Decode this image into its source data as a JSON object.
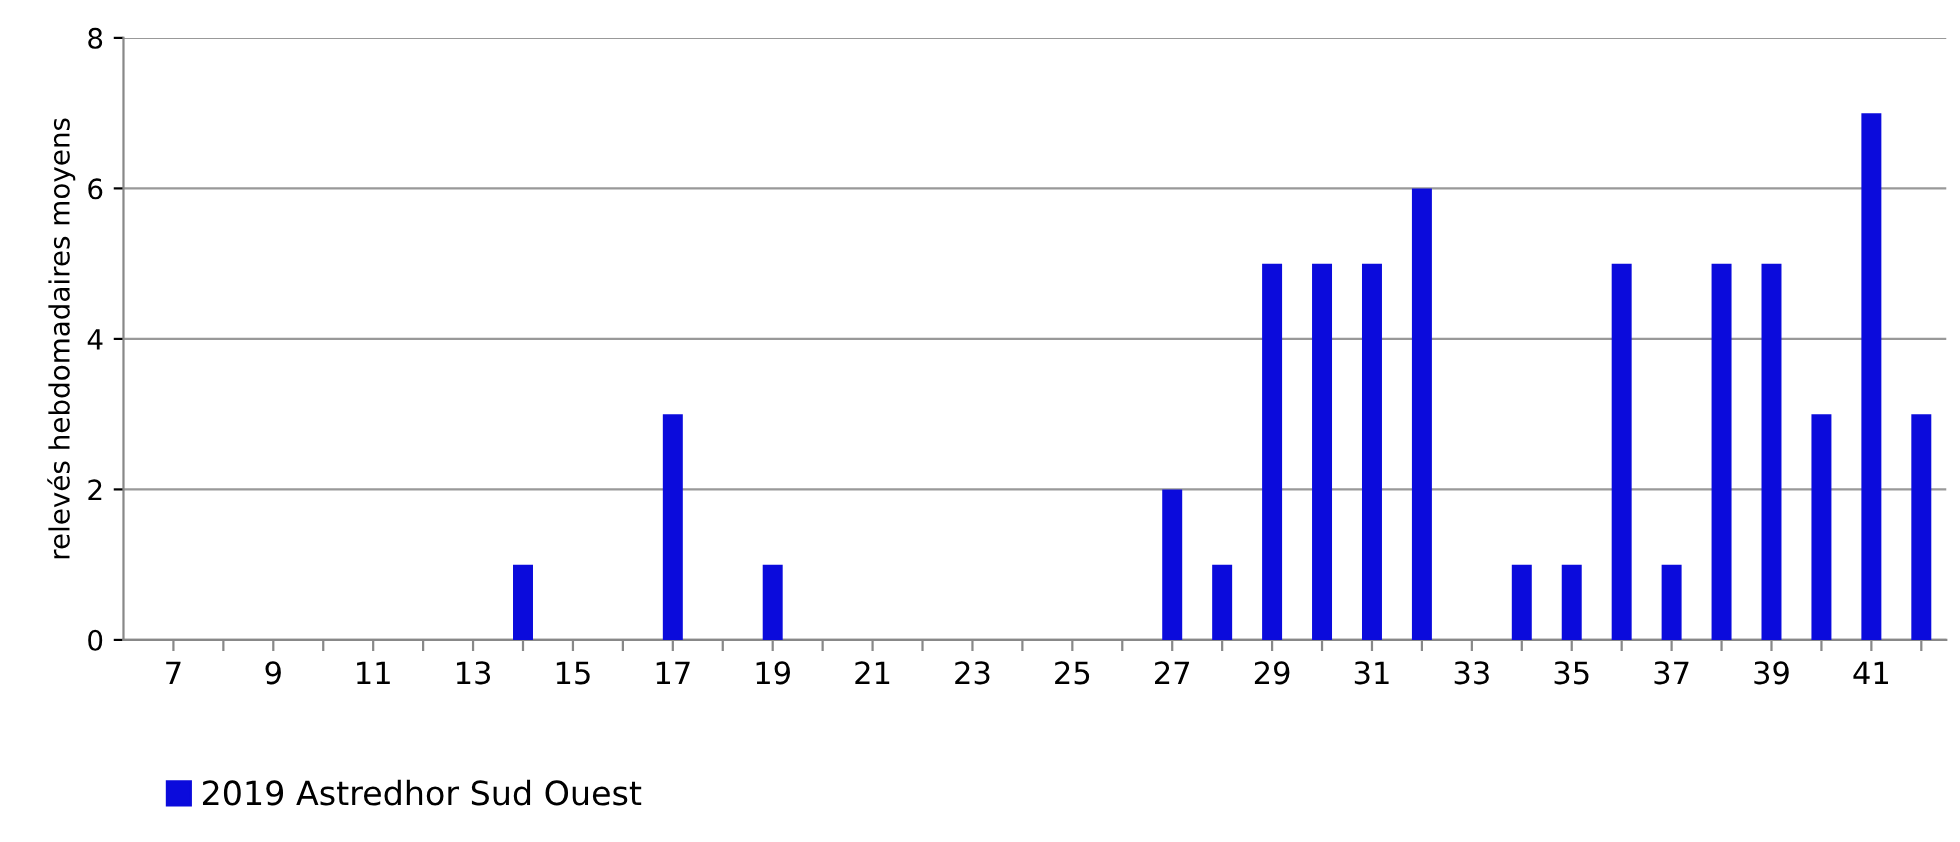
{
  "chart_data": {
    "type": "bar",
    "ylabel": "relevés hebdomadaires moyens",
    "categories": [
      "7",
      null,
      "9",
      null,
      "11",
      null,
      "13",
      null,
      "15",
      null,
      "17",
      null,
      "19",
      null,
      "21",
      null,
      "23",
      null,
      "25",
      null,
      "27",
      null,
      "29",
      null,
      "31",
      null,
      "33",
      null,
      "35",
      null,
      "37",
      null,
      "39",
      null,
      "41",
      null
    ],
    "series": [
      {
        "name": "2019 Astredhor Sud Ouest",
        "color": "#0b0bdc",
        "values": [
          0,
          0,
          0,
          0,
          0,
          0,
          0,
          1,
          0,
          0,
          3,
          0,
          1,
          0,
          0,
          0,
          0,
          0,
          0,
          0,
          2,
          1,
          5,
          5,
          5,
          6,
          0,
          1,
          1,
          5,
          1,
          5,
          5,
          3,
          7,
          3
        ]
      }
    ],
    "ylim": [
      0,
      8
    ],
    "yticks": [
      0,
      2,
      4,
      6,
      8
    ],
    "grid": "y",
    "legend": "bottom left"
  }
}
